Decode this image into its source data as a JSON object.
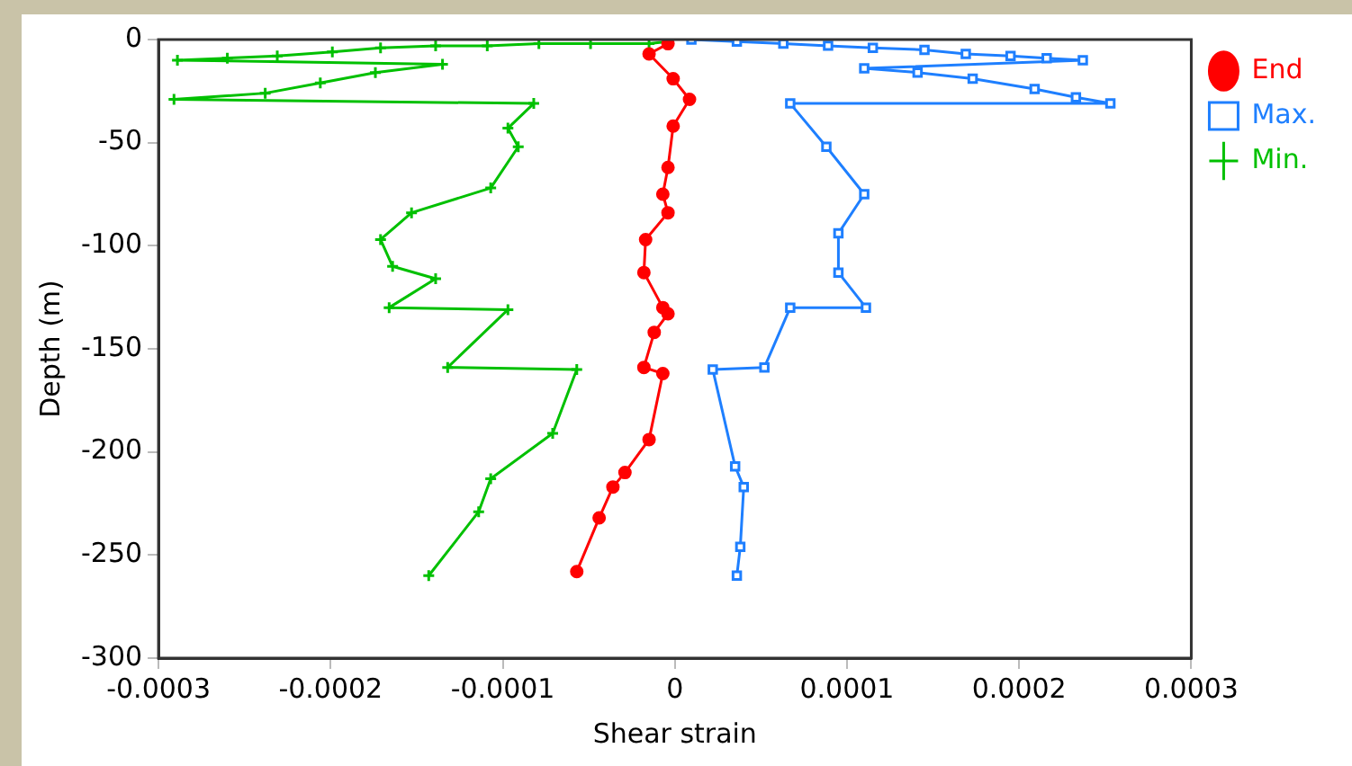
{
  "chart_data": {
    "type": "line",
    "xlabel": "Shear strain",
    "ylabel": "Depth (m)",
    "xlim": [
      -0.0003,
      0.0003
    ],
    "xticks": [
      -0.0003,
      -0.0002,
      -0.0001,
      0,
      0.0001,
      0.0002,
      0.0003
    ],
    "ylim": [
      -300,
      0
    ],
    "yticks": [
      -300,
      -250,
      -200,
      -150,
      -100,
      -50,
      0
    ],
    "grid": false,
    "legend": "top right",
    "line_style": "solid",
    "series": [
      {
        "name": "End",
        "color": "#ff0000",
        "marker": "circle",
        "x": [
          -4e-06,
          -1.5e-05,
          -1e-06,
          8.5e-06,
          -1e-06,
          -4e-06,
          -7e-06,
          -4e-06,
          -1.7e-05,
          -1.8e-05,
          -7e-06,
          -4e-06,
          -1.2e-05,
          -1.8e-05,
          -7e-06,
          -1.5e-05,
          -2.9e-05,
          -3.6e-05,
          -4.4e-05,
          -5.7e-05
        ],
        "values": [
          -2,
          -7,
          -19,
          -29,
          -42,
          -62,
          -75,
          -84,
          -97,
          -113,
          -130,
          -133,
          -142,
          -159,
          -162,
          -194,
          -210,
          -217,
          -232,
          -258
        ]
      },
      {
        "name": "Max.",
        "color": "#1e7fff",
        "marker": "square",
        "x": [
          9.6e-06,
          3.6e-05,
          6.3e-05,
          8.9e-05,
          0.000115,
          0.000145,
          0.000169,
          0.000195,
          0.000216,
          0.000237,
          0.00011,
          0.000141,
          0.000173,
          0.000209,
          0.000233,
          0.000253,
          6.7e-05,
          8.8e-05,
          0.00011,
          9.5e-05,
          9.5e-05,
          0.000111,
          6.7e-05,
          5.2e-05,
          2.2e-05,
          3.5e-05,
          4e-05,
          3.8e-05,
          3.6e-05
        ],
        "values": [
          0,
          -1,
          -2,
          -3,
          -4,
          -5,
          -7,
          -8,
          -9,
          -10,
          -14,
          -16,
          -19,
          -24,
          -28,
          -31,
          -31,
          -52,
          -75,
          -94,
          -113,
          -130,
          -130,
          -159,
          -160,
          -207,
          -217,
          -246,
          -260
        ]
      },
      {
        "name": "Min.",
        "color": "#00c000",
        "marker": "cross",
        "x": [
          -4e-06,
          -1.5e-05,
          -4.9e-05,
          -7.9e-05,
          -0.000109,
          -0.000139,
          -0.000171,
          -0.000199,
          -0.000231,
          -0.00026,
          -0.000289,
          -0.000135,
          -0.000174,
          -0.000206,
          -0.000238,
          -0.000291,
          -8.2e-05,
          -9.7e-05,
          -9.1e-05,
          -0.000107,
          -0.000153,
          -0.000171,
          -0.000164,
          -0.000139,
          -0.000166,
          -9.7e-05,
          -0.000132,
          -5.7e-05,
          -7.1e-05,
          -0.000107,
          -0.000114,
          -0.000143
        ],
        "values": [
          -1,
          -2,
          -2,
          -2,
          -3,
          -3,
          -4,
          -6,
          -8,
          -9,
          -10,
          -12,
          -16,
          -21,
          -26,
          -29,
          -31,
          -43,
          -52,
          -72,
          -84,
          -97,
          -110,
          -116,
          -130,
          -131,
          -159,
          -160,
          -191,
          -213,
          -229,
          -260
        ]
      }
    ]
  }
}
